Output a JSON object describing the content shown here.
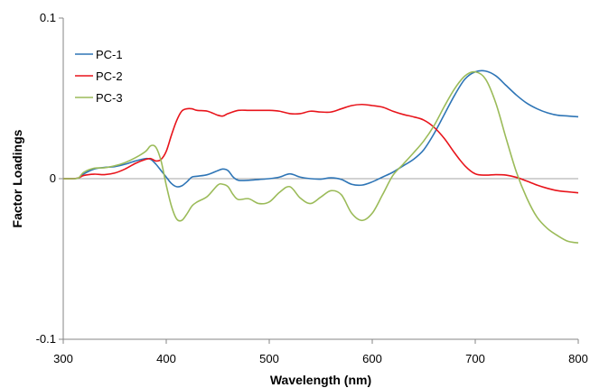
{
  "chart_data": {
    "type": "line",
    "title": "",
    "xlabel": "Wavelength (nm)",
    "ylabel": "Factor Loadings",
    "xlim": [
      300,
      800
    ],
    "ylim": [
      -0.1,
      0.1
    ],
    "x_ticks": [
      300,
      400,
      500,
      600,
      700,
      800
    ],
    "x_tick_labels": [
      "300",
      "400",
      "500",
      "600",
      "700",
      "800"
    ],
    "y_ticks": [
      -0.1,
      0,
      0.1
    ],
    "y_tick_labels": [
      "-0.1",
      "0",
      "0.1"
    ],
    "grid": false,
    "zero_line": true,
    "legend_position": "top-left",
    "series": [
      {
        "name": "PC-1",
        "color": "#2E75B6",
        "x": [
          300,
          310,
          315,
          320,
          330,
          340,
          350,
          360,
          370,
          380,
          385,
          390,
          395,
          400,
          405,
          410,
          415,
          420,
          425,
          430,
          440,
          450,
          455,
          460,
          465,
          470,
          480,
          490,
          500,
          510,
          520,
          530,
          540,
          550,
          560,
          570,
          580,
          590,
          600,
          610,
          620,
          630,
          640,
          650,
          660,
          670,
          680,
          690,
          700,
          710,
          720,
          730,
          740,
          750,
          760,
          770,
          780,
          790,
          800
        ],
        "y": [
          0,
          0,
          0.0005,
          0.003,
          0.006,
          0.007,
          0.0075,
          0.009,
          0.011,
          0.0125,
          0.012,
          0.009,
          0.005,
          0.001,
          -0.003,
          -0.005,
          -0.0045,
          -0.002,
          0.001,
          0.0015,
          0.0025,
          0.005,
          0.006,
          0.005,
          0.001,
          -0.001,
          -0.001,
          -0.0005,
          0,
          0.001,
          0.003,
          0.001,
          0,
          -0.0003,
          0.0005,
          -0.0005,
          -0.0035,
          -0.004,
          -0.002,
          0.001,
          0.004,
          0.008,
          0.012,
          0.018,
          0.028,
          0.04,
          0.052,
          0.062,
          0.0665,
          0.067,
          0.064,
          0.058,
          0.052,
          0.047,
          0.0435,
          0.041,
          0.0395,
          0.039,
          0.0385
        ]
      },
      {
        "name": "PC-2",
        "color": "#E8141B",
        "x": [
          300,
          310,
          315,
          320,
          330,
          340,
          350,
          360,
          370,
          380,
          385,
          390,
          395,
          400,
          405,
          410,
          415,
          420,
          425,
          430,
          440,
          450,
          455,
          460,
          470,
          480,
          490,
          500,
          510,
          520,
          530,
          540,
          550,
          560,
          570,
          580,
          590,
          600,
          610,
          620,
          630,
          640,
          650,
          660,
          670,
          680,
          690,
          700,
          710,
          720,
          730,
          740,
          750,
          760,
          770,
          780,
          790,
          800
        ],
        "y": [
          0,
          0,
          0.0005,
          0.002,
          0.0028,
          0.0025,
          0.0035,
          0.006,
          0.0095,
          0.012,
          0.0125,
          0.011,
          0.012,
          0.017,
          0.027,
          0.036,
          0.042,
          0.0435,
          0.0435,
          0.0425,
          0.042,
          0.0395,
          0.039,
          0.0405,
          0.0425,
          0.0425,
          0.0425,
          0.0425,
          0.042,
          0.0405,
          0.0405,
          0.042,
          0.0415,
          0.0415,
          0.0435,
          0.0455,
          0.0462,
          0.0455,
          0.0445,
          0.042,
          0.04,
          0.0385,
          0.0365,
          0.032,
          0.025,
          0.016,
          0.008,
          0.003,
          0.0022,
          0.0025,
          0.0022,
          0.0008,
          -0.0015,
          -0.004,
          -0.006,
          -0.0075,
          -0.0082,
          -0.0088
        ]
      },
      {
        "name": "PC-3",
        "color": "#9BBB59",
        "x": [
          300,
          310,
          315,
          320,
          330,
          340,
          350,
          360,
          370,
          380,
          385,
          390,
          395,
          400,
          405,
          410,
          415,
          420,
          425,
          430,
          440,
          450,
          455,
          460,
          465,
          470,
          480,
          490,
          500,
          510,
          520,
          530,
          540,
          550,
          560,
          570,
          580,
          590,
          600,
          610,
          620,
          630,
          640,
          650,
          660,
          670,
          680,
          690,
          700,
          710,
          720,
          730,
          740,
          750,
          760,
          770,
          780,
          790,
          800
        ],
        "y": [
          0,
          0,
          0.0005,
          0.004,
          0.0065,
          0.0068,
          0.008,
          0.01,
          0.013,
          0.017,
          0.0205,
          0.0195,
          0.011,
          -0.004,
          -0.017,
          -0.025,
          -0.026,
          -0.022,
          -0.017,
          -0.0145,
          -0.011,
          -0.004,
          -0.0035,
          -0.005,
          -0.01,
          -0.013,
          -0.0125,
          -0.0155,
          -0.0145,
          -0.0085,
          -0.005,
          -0.012,
          -0.0155,
          -0.0115,
          -0.0075,
          -0.01,
          -0.0215,
          -0.026,
          -0.0215,
          -0.01,
          0.002,
          0.009,
          0.016,
          0.0235,
          0.033,
          0.045,
          0.056,
          0.064,
          0.0665,
          0.062,
          0.047,
          0.025,
          0.004,
          -0.012,
          -0.024,
          -0.031,
          -0.0355,
          -0.039,
          -0.04
        ]
      }
    ]
  }
}
